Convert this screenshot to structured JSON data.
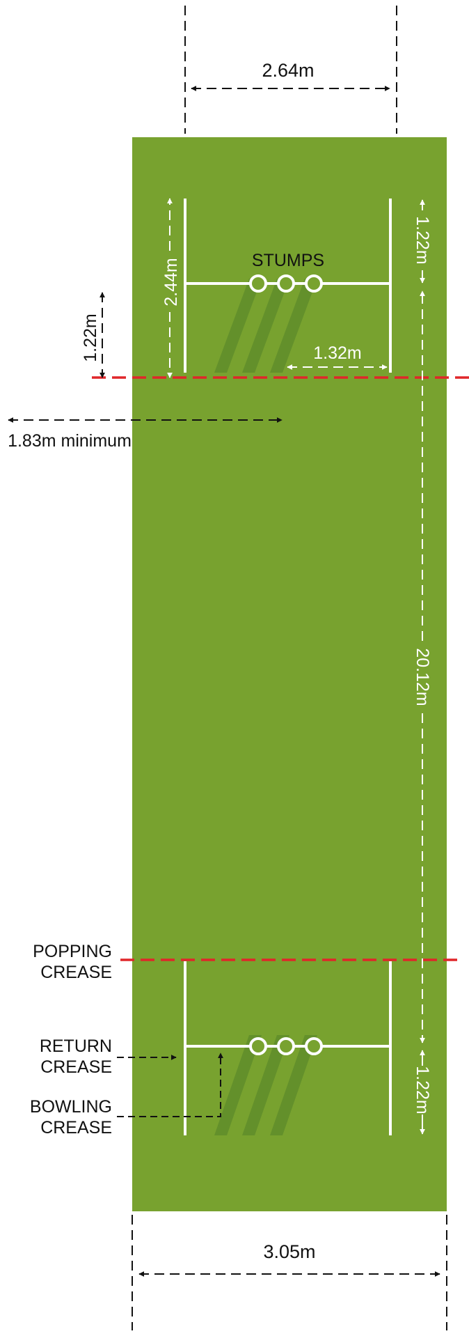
{
  "colors": {
    "pitch": "#78a22f",
    "shadow": "#5c8a2a",
    "crease": "#ffffff",
    "popping_crease": "#e0262a",
    "annotation_dark": "#111111",
    "annotation_light": "#ffffff"
  },
  "labels": {
    "stumps": "STUMPS",
    "width_top": "2.64m",
    "stumps_width": "2.44m",
    "popping_depth_left": "1.22m",
    "top_right_depth": "1.22m",
    "return_offset": "1.32m",
    "minimum": "1.83m minimum",
    "pitch_length": "20.12m",
    "bottom_right_depth": "1.22m",
    "width_bottom": "3.05m"
  },
  "legend": {
    "popping_line1": "POPPING",
    "popping_line2": "CREASE",
    "return_line1": "RETURN",
    "return_line2": "CREASE",
    "bowling_line1": "BOWLING",
    "bowling_line2": "CREASE"
  }
}
